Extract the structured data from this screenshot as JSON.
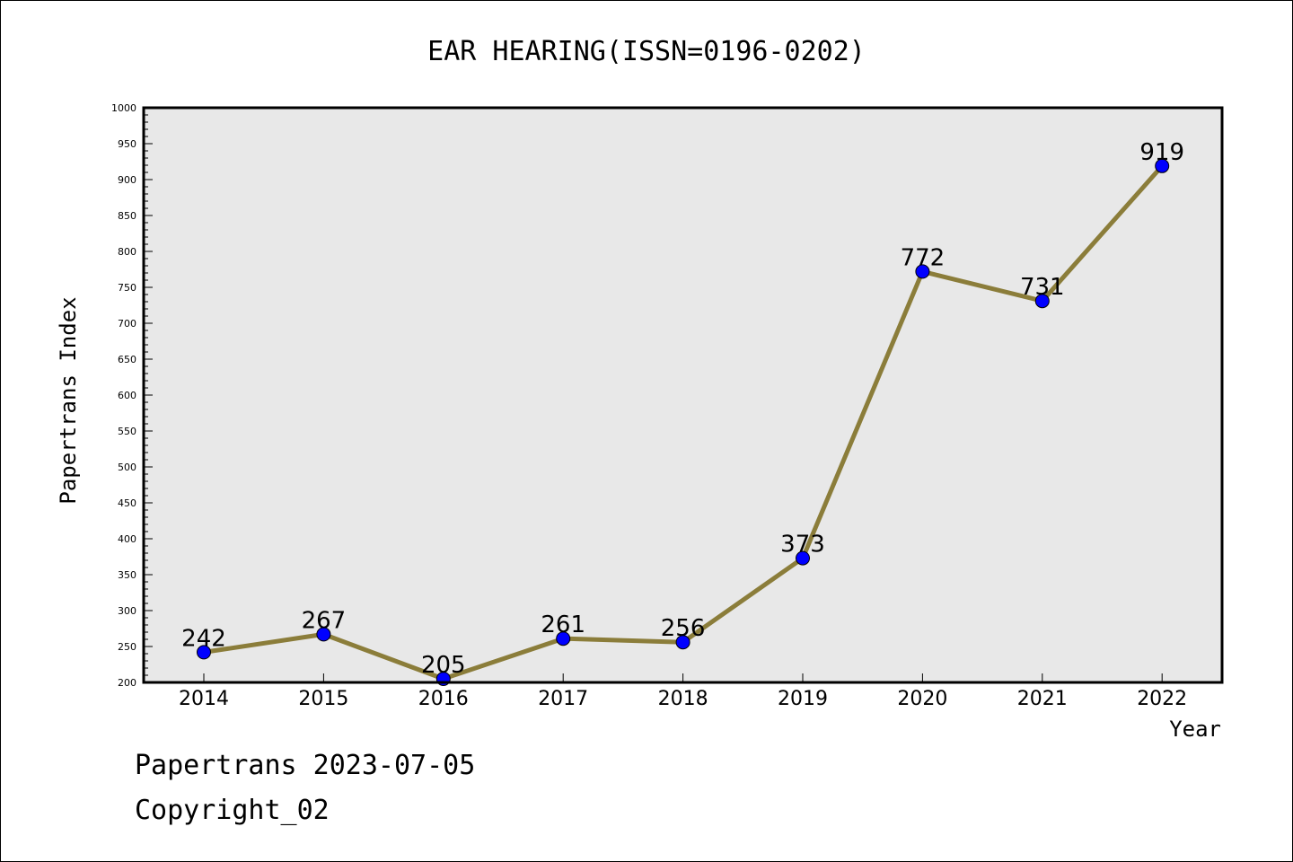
{
  "chart_data": {
    "type": "line",
    "title": "EAR HEARING(ISSN=0196-0202)",
    "xlabel": "Year",
    "ylabel": "Papertrans Index",
    "categories": [
      "2014",
      "2015",
      "2016",
      "2017",
      "2018",
      "2019",
      "2020",
      "2021",
      "2022"
    ],
    "series": [
      {
        "values": [
          242,
          267,
          205,
          261,
          256,
          373,
          772,
          731,
          919
        ]
      }
    ],
    "data_labels": [
      "242",
      "267",
      "205",
      "261",
      "256",
      "373",
      "772",
      "731",
      "919"
    ],
    "ylim": [
      200,
      1000
    ],
    "yticks": [
      "200",
      "250",
      "300",
      "350",
      "400",
      "450",
      "500",
      "550",
      "600",
      "650",
      "700",
      "750",
      "800",
      "850",
      "900",
      "950",
      "1000"
    ],
    "grid": false,
    "colors": {
      "line": "#8b7d3a",
      "marker": "#0000ff",
      "plot_background": "#e8e8e8"
    }
  },
  "footer": {
    "date_line": "Papertrans 2023-07-05",
    "copyright_line": "Copyright_02"
  }
}
